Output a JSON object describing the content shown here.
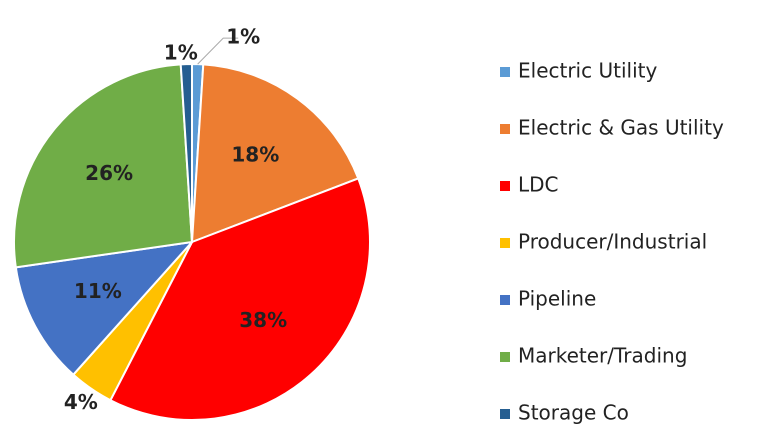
{
  "chart_data": {
    "type": "pie",
    "categories": [
      "Electric Utility",
      "Electric & Gas Utility",
      "LDC",
      "Producer/Industrial",
      "Pipeline",
      "Marketer/Trading",
      "Storage Co"
    ],
    "values": [
      1,
      18,
      38,
      4,
      11,
      26,
      1
    ],
    "value_labels": [
      "1%",
      "18%",
      "38%",
      "4%",
      "11%",
      "26%",
      "1%"
    ],
    "colors": [
      "#5b9bd5",
      "#ed7d31",
      "#ff0000",
      "#ffc000",
      "#4472c4",
      "#70ad47",
      "#255e91"
    ],
    "legend": "right"
  }
}
